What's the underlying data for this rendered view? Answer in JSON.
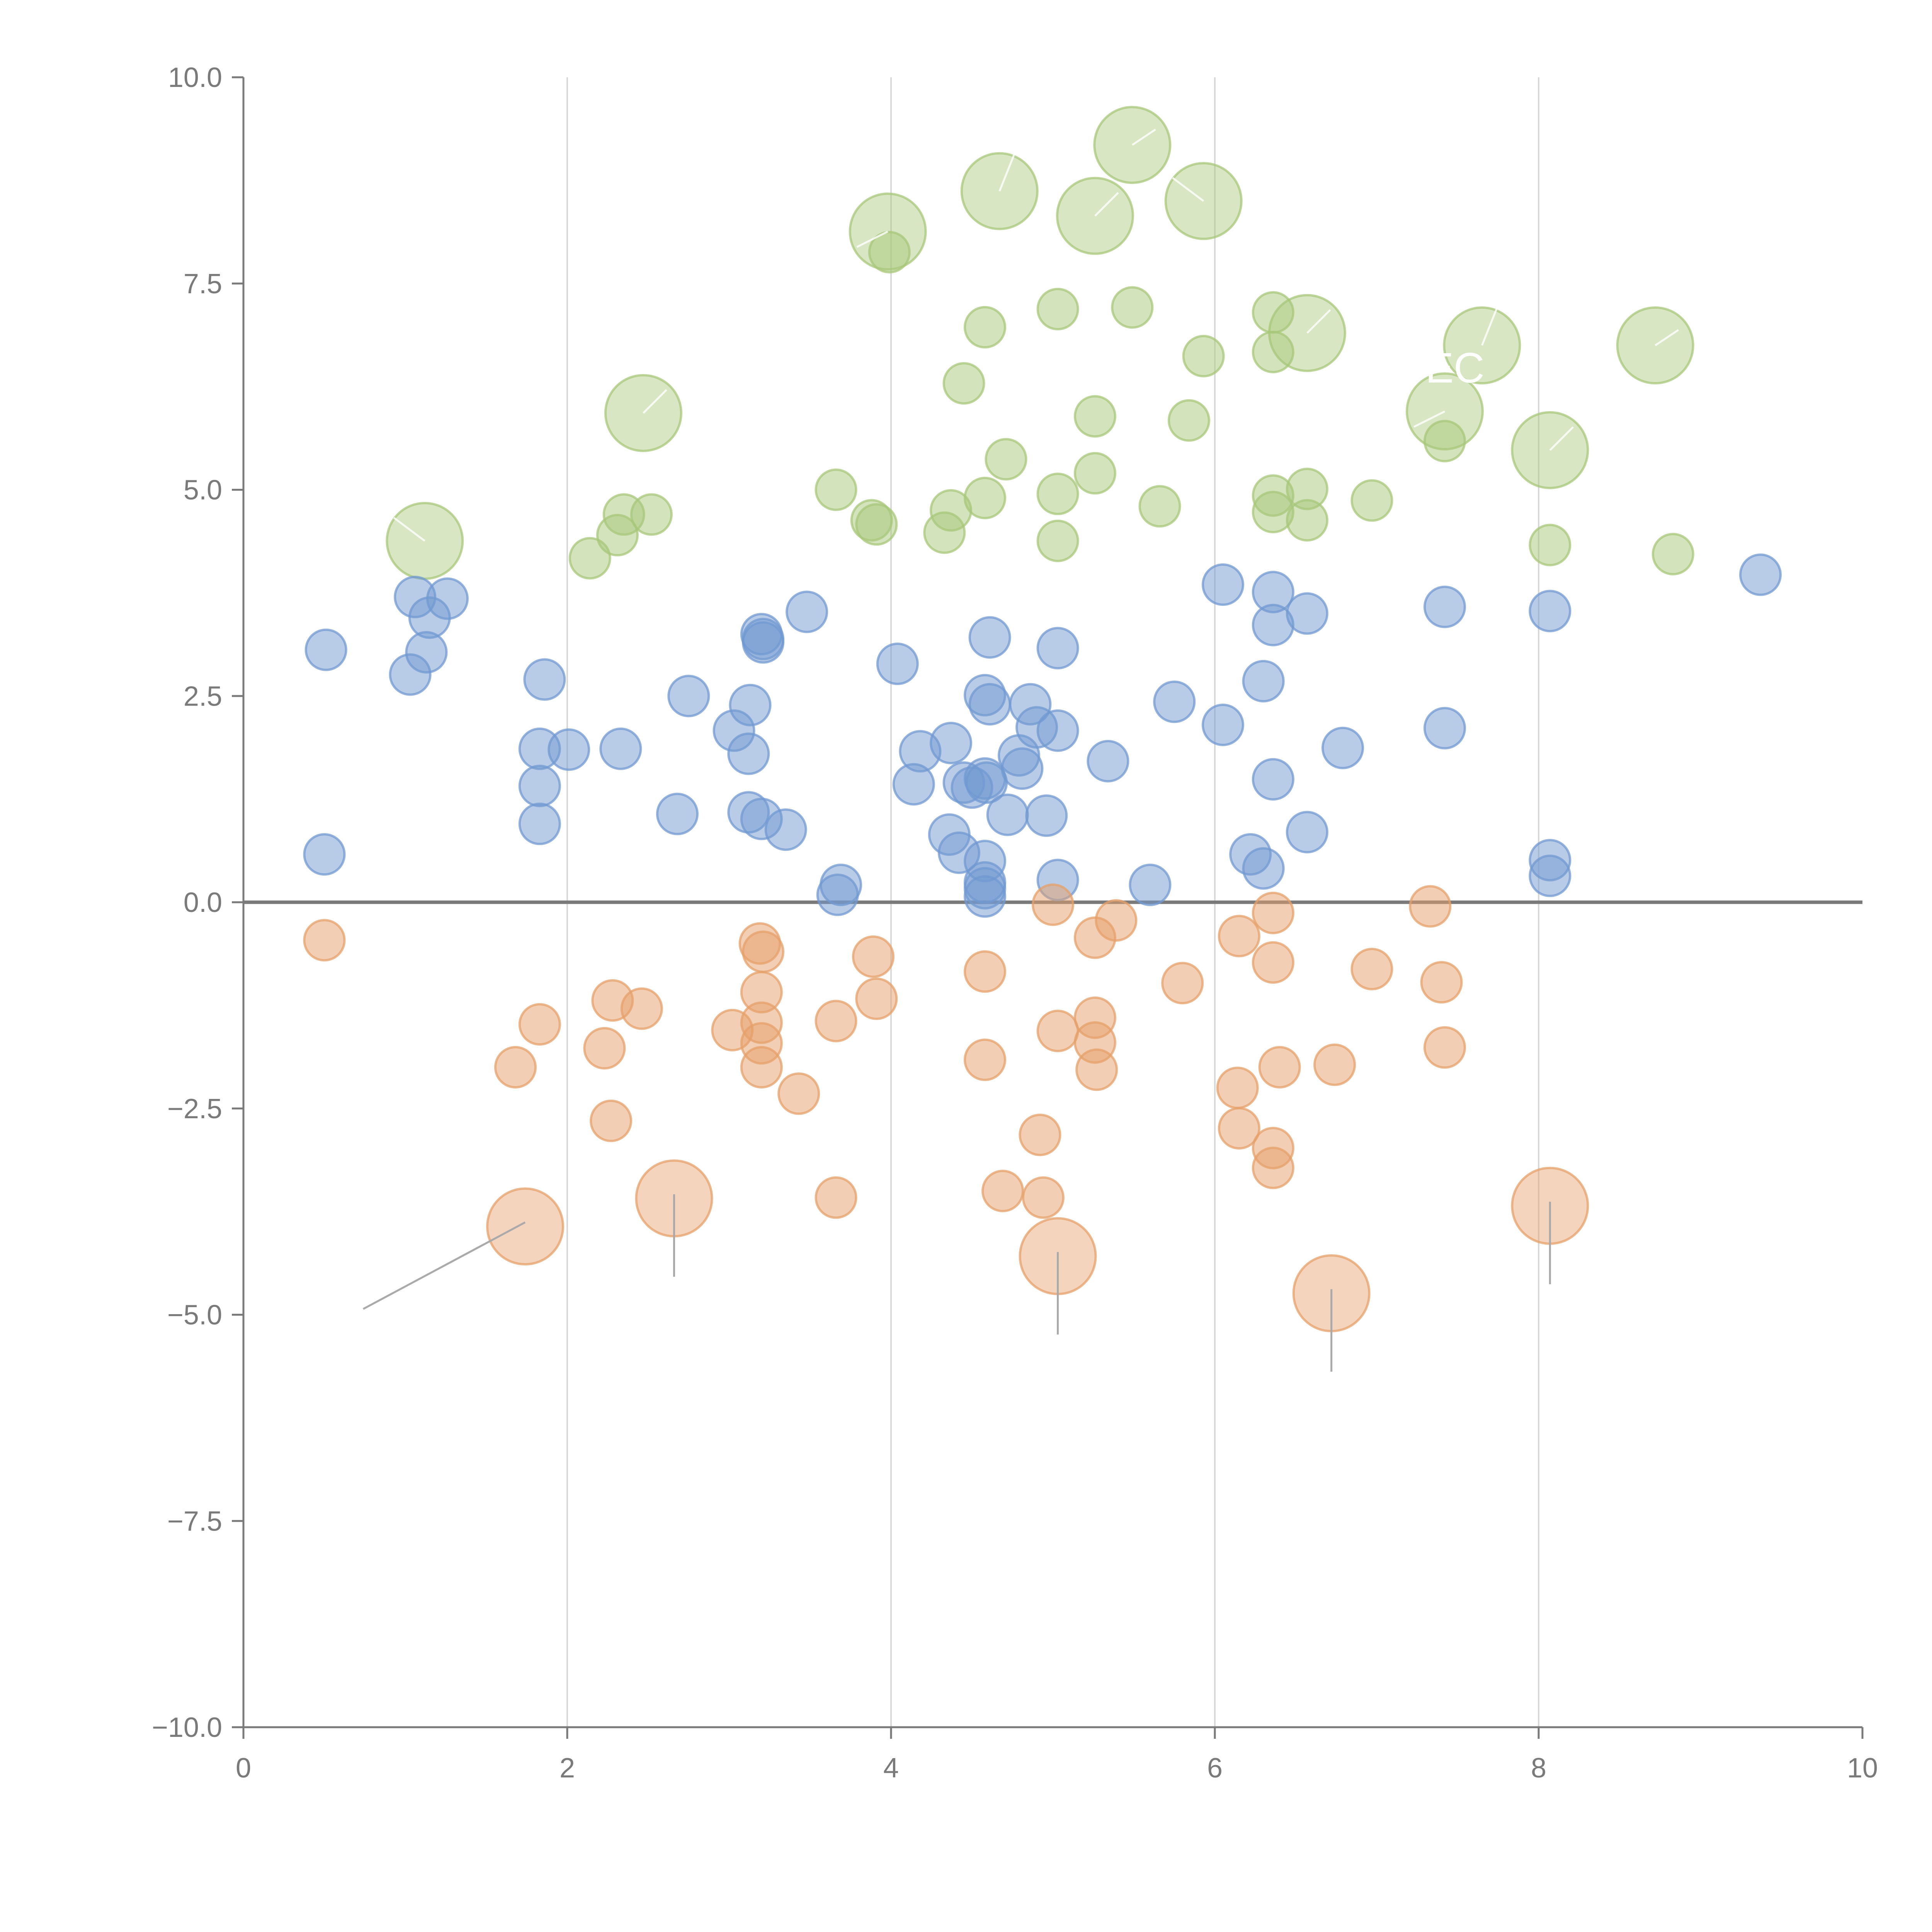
{
  "chart_data": {
    "type": "scatter",
    "title": "",
    "xlabel": "",
    "ylabel": "",
    "xlim": [
      0,
      10
    ],
    "ylim": [
      -10,
      10
    ],
    "grid": "vertical",
    "zero_line": true,
    "x_ticks": [
      "0",
      "2",
      "4",
      "6",
      "8",
      "10"
    ],
    "y_ticks": [
      "−10.0",
      "−7.5",
      "−5.0",
      "−2.5",
      "0.0",
      "2.5",
      "5.0",
      "7.5",
      "10.0"
    ],
    "colors": {
      "green": "#a8c77a",
      "blue": "#7299d1",
      "orange": "#e6a06a",
      "leader_dark": "#aaaaaa",
      "leader_light": "#ffffff"
    },
    "series": [
      {
        "name": "green",
        "color": "#a8c77a",
        "points": [
          {
            "x": 1.12,
            "y": 4.38,
            "size": "large"
          },
          {
            "x": 2.47,
            "y": 5.93,
            "size": "large"
          },
          {
            "x": 3.98,
            "y": 8.13,
            "size": "large"
          },
          {
            "x": 4.67,
            "y": 8.62,
            "size": "large"
          },
          {
            "x": 5.26,
            "y": 8.32,
            "size": "large"
          },
          {
            "x": 5.49,
            "y": 9.18,
            "size": "large"
          },
          {
            "x": 5.93,
            "y": 8.5,
            "size": "large"
          },
          {
            "x": 6.57,
            "y": 6.9,
            "size": "large"
          },
          {
            "x": 7.42,
            "y": 5.95,
            "size": "large"
          },
          {
            "x": 7.65,
            "y": 6.75,
            "size": "large"
          },
          {
            "x": 8.07,
            "y": 5.48,
            "size": "large"
          },
          {
            "x": 8.72,
            "y": 6.75,
            "size": "large"
          },
          {
            "x": 2.14,
            "y": 4.17,
            "size": "small"
          },
          {
            "x": 2.31,
            "y": 4.45,
            "size": "small"
          },
          {
            "x": 2.35,
            "y": 4.7,
            "size": "small"
          },
          {
            "x": 2.52,
            "y": 4.7,
            "size": "small"
          },
          {
            "x": 3.66,
            "y": 5.0,
            "size": "small"
          },
          {
            "x": 3.88,
            "y": 4.63,
            "size": "small"
          },
          {
            "x": 3.91,
            "y": 4.58,
            "size": "small"
          },
          {
            "x": 3.99,
            "y": 7.88,
            "size": "small"
          },
          {
            "x": 4.33,
            "y": 4.48,
            "size": "small"
          },
          {
            "x": 4.37,
            "y": 4.75,
            "size": "small"
          },
          {
            "x": 4.45,
            "y": 6.29,
            "size": "small"
          },
          {
            "x": 4.58,
            "y": 6.97,
            "size": "small"
          },
          {
            "x": 4.58,
            "y": 4.9,
            "size": "small"
          },
          {
            "x": 4.71,
            "y": 5.37,
            "size": "small"
          },
          {
            "x": 5.03,
            "y": 7.19,
            "size": "small"
          },
          {
            "x": 5.03,
            "y": 4.95,
            "size": "small"
          },
          {
            "x": 5.03,
            "y": 4.38,
            "size": "small"
          },
          {
            "x": 5.26,
            "y": 5.89,
            "size": "small"
          },
          {
            "x": 5.26,
            "y": 5.2,
            "size": "small"
          },
          {
            "x": 5.49,
            "y": 7.21,
            "size": "small"
          },
          {
            "x": 5.66,
            "y": 4.8,
            "size": "small"
          },
          {
            "x": 5.84,
            "y": 5.84,
            "size": "small"
          },
          {
            "x": 5.93,
            "y": 6.62,
            "size": "small"
          },
          {
            "x": 6.36,
            "y": 7.15,
            "size": "small"
          },
          {
            "x": 6.36,
            "y": 6.67,
            "size": "small"
          },
          {
            "x": 6.36,
            "y": 4.93,
            "size": "small"
          },
          {
            "x": 6.36,
            "y": 4.73,
            "size": "small"
          },
          {
            "x": 6.57,
            "y": 5.01,
            "size": "small"
          },
          {
            "x": 6.57,
            "y": 4.63,
            "size": "small"
          },
          {
            "x": 6.97,
            "y": 4.87,
            "size": "small"
          },
          {
            "x": 7.42,
            "y": 5.59,
            "size": "small"
          },
          {
            "x": 8.07,
            "y": 4.33,
            "size": "small"
          },
          {
            "x": 8.83,
            "y": 4.22,
            "size": "small"
          }
        ]
      },
      {
        "name": "blue",
        "color": "#7299d1",
        "points": [
          {
            "x": 0.51,
            "y": 3.06
          },
          {
            "x": 0.5,
            "y": 0.58
          },
          {
            "x": 1.03,
            "y": 2.76
          },
          {
            "x": 1.06,
            "y": 3.7
          },
          {
            "x": 1.15,
            "y": 3.45
          },
          {
            "x": 1.13,
            "y": 3.03
          },
          {
            "x": 1.26,
            "y": 3.68
          },
          {
            "x": 1.86,
            "y": 2.7
          },
          {
            "x": 1.83,
            "y": 1.86
          },
          {
            "x": 1.83,
            "y": 1.41
          },
          {
            "x": 1.83,
            "y": 0.95
          },
          {
            "x": 2.01,
            "y": 1.85
          },
          {
            "x": 2.33,
            "y": 1.86
          },
          {
            "x": 2.68,
            "y": 1.07
          },
          {
            "x": 2.75,
            "y": 2.5
          },
          {
            "x": 3.03,
            "y": 2.08
          },
          {
            "x": 3.13,
            "y": 2.39
          },
          {
            "x": 3.12,
            "y": 1.8
          },
          {
            "x": 3.12,
            "y": 1.09
          },
          {
            "x": 3.2,
            "y": 1.01
          },
          {
            "x": 3.2,
            "y": 3.25
          },
          {
            "x": 3.21,
            "y": 3.15
          },
          {
            "x": 3.21,
            "y": 3.19
          },
          {
            "x": 3.35,
            "y": 0.88
          },
          {
            "x": 3.48,
            "y": 3.52
          },
          {
            "x": 3.67,
            "y": 0.09
          },
          {
            "x": 3.69,
            "y": 0.21
          },
          {
            "x": 4.04,
            "y": 2.89
          },
          {
            "x": 4.14,
            "y": 1.43
          },
          {
            "x": 4.18,
            "y": 1.83
          },
          {
            "x": 4.36,
            "y": 0.82
          },
          {
            "x": 4.37,
            "y": 1.93
          },
          {
            "x": 4.42,
            "y": 0.6
          },
          {
            "x": 4.45,
            "y": 1.45
          },
          {
            "x": 4.5,
            "y": 1.39
          },
          {
            "x": 4.58,
            "y": 2.51
          },
          {
            "x": 4.58,
            "y": 1.5
          },
          {
            "x": 4.58,
            "y": 0.5
          },
          {
            "x": 4.58,
            "y": 0.24
          },
          {
            "x": 4.58,
            "y": 0.17
          },
          {
            "x": 4.58,
            "y": 0.07
          },
          {
            "x": 4.59,
            "y": 1.45
          },
          {
            "x": 4.61,
            "y": 2.4
          },
          {
            "x": 4.61,
            "y": 3.21
          },
          {
            "x": 4.72,
            "y": 1.06
          },
          {
            "x": 4.79,
            "y": 1.78
          },
          {
            "x": 4.81,
            "y": 1.62
          },
          {
            "x": 4.86,
            "y": 2.4
          },
          {
            "x": 4.9,
            "y": 2.12
          },
          {
            "x": 4.96,
            "y": 1.05
          },
          {
            "x": 5.03,
            "y": 3.08
          },
          {
            "x": 5.03,
            "y": 2.08
          },
          {
            "x": 5.03,
            "y": 0.27
          },
          {
            "x": 5.34,
            "y": 1.71
          },
          {
            "x": 5.6,
            "y": 0.21
          },
          {
            "x": 5.75,
            "y": 2.43
          },
          {
            "x": 6.05,
            "y": 3.85
          },
          {
            "x": 6.05,
            "y": 2.15
          },
          {
            "x": 6.22,
            "y": 0.58
          },
          {
            "x": 6.3,
            "y": 2.68
          },
          {
            "x": 6.3,
            "y": 0.41
          },
          {
            "x": 6.36,
            "y": 3.76
          },
          {
            "x": 6.36,
            "y": 3.36
          },
          {
            "x": 6.36,
            "y": 1.49
          },
          {
            "x": 6.57,
            "y": 3.5
          },
          {
            "x": 6.57,
            "y": 0.85
          },
          {
            "x": 6.79,
            "y": 1.87
          },
          {
            "x": 7.42,
            "y": 3.58
          },
          {
            "x": 7.42,
            "y": 2.11
          },
          {
            "x": 8.07,
            "y": 3.53
          },
          {
            "x": 8.07,
            "y": 0.51
          },
          {
            "x": 8.07,
            "y": 0.32
          },
          {
            "x": 9.37,
            "y": 3.97
          }
        ]
      },
      {
        "name": "orange",
        "color": "#e6a06a",
        "points": [
          {
            "x": 1.74,
            "y": -3.93,
            "size": "large"
          },
          {
            "x": 2.66,
            "y": -3.59,
            "size": "large"
          },
          {
            "x": 5.03,
            "y": -4.29,
            "size": "large"
          },
          {
            "x": 6.72,
            "y": -4.74,
            "size": "large"
          },
          {
            "x": 8.07,
            "y": -3.68,
            "size": "large"
          },
          {
            "x": 0.5,
            "y": -0.46
          },
          {
            "x": 1.68,
            "y": -2.0
          },
          {
            "x": 1.83,
            "y": -1.48
          },
          {
            "x": 2.23,
            "y": -1.77
          },
          {
            "x": 2.28,
            "y": -1.19
          },
          {
            "x": 2.27,
            "y": -2.65
          },
          {
            "x": 2.46,
            "y": -1.29
          },
          {
            "x": 3.02,
            "y": -1.55
          },
          {
            "x": 3.19,
            "y": -0.5
          },
          {
            "x": 3.21,
            "y": -0.6
          },
          {
            "x": 3.2,
            "y": -1.09
          },
          {
            "x": 3.2,
            "y": -1.46
          },
          {
            "x": 3.2,
            "y": -1.71
          },
          {
            "x": 3.2,
            "y": -2.0
          },
          {
            "x": 3.43,
            "y": -2.32
          },
          {
            "x": 3.66,
            "y": -1.44
          },
          {
            "x": 3.66,
            "y": -3.58
          },
          {
            "x": 3.89,
            "y": -0.66
          },
          {
            "x": 3.91,
            "y": -1.17
          },
          {
            "x": 4.58,
            "y": -0.84
          },
          {
            "x": 4.58,
            "y": -1.91
          },
          {
            "x": 4.69,
            "y": -3.5
          },
          {
            "x": 4.92,
            "y": -2.82
          },
          {
            "x": 4.94,
            "y": -3.58
          },
          {
            "x": 5.0,
            "y": -0.03
          },
          {
            "x": 5.03,
            "y": -1.56
          },
          {
            "x": 5.26,
            "y": -1.4
          },
          {
            "x": 5.26,
            "y": -1.7
          },
          {
            "x": 5.27,
            "y": -2.03
          },
          {
            "x": 5.26,
            "y": -0.43
          },
          {
            "x": 5.39,
            "y": -0.22
          },
          {
            "x": 5.8,
            "y": -0.98
          },
          {
            "x": 6.15,
            "y": -0.41
          },
          {
            "x": 6.14,
            "y": -2.25
          },
          {
            "x": 6.15,
            "y": -2.74
          },
          {
            "x": 6.36,
            "y": -0.13
          },
          {
            "x": 6.36,
            "y": -0.73
          },
          {
            "x": 6.36,
            "y": -2.98
          },
          {
            "x": 6.36,
            "y": -3.22
          },
          {
            "x": 6.4,
            "y": -2.0
          },
          {
            "x": 6.74,
            "y": -1.97
          },
          {
            "x": 6.97,
            "y": -0.81
          },
          {
            "x": 7.33,
            "y": -0.05
          },
          {
            "x": 7.4,
            "y": -0.97
          },
          {
            "x": 7.42,
            "y": -1.76
          }
        ]
      }
    ],
    "labels": [
      {
        "text": "'EC",
        "x": 7.25,
        "y": 6.3,
        "color": "#ffffff"
      }
    ]
  }
}
